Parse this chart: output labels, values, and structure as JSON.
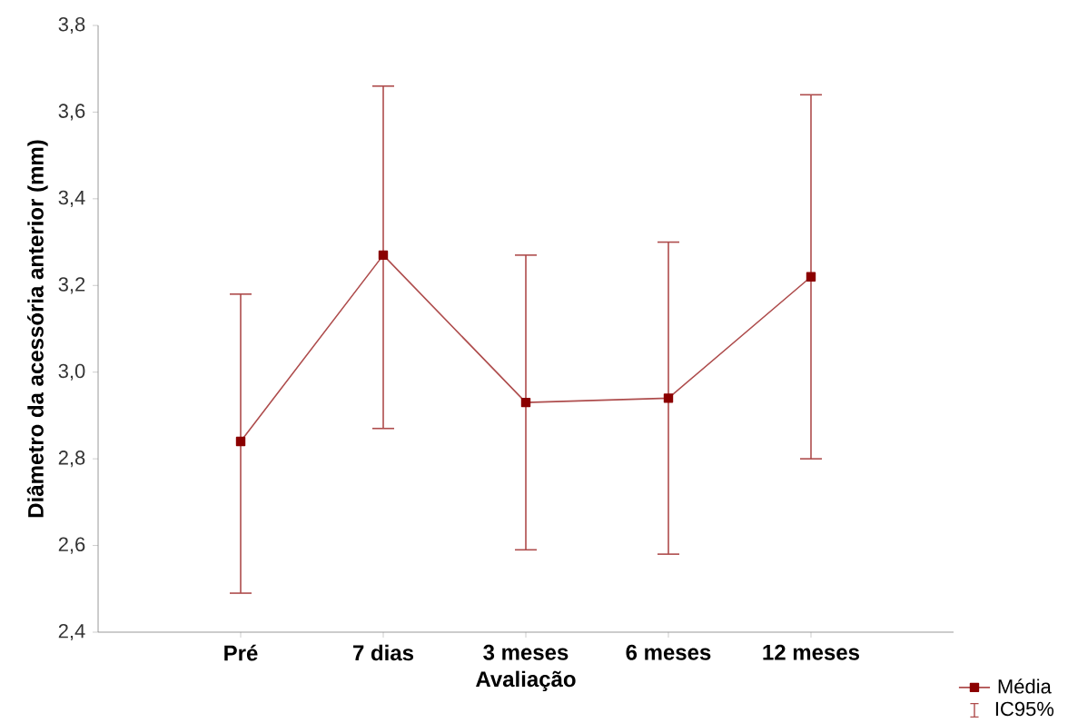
{
  "chart_data": {
    "type": "line",
    "xlabel": "Avaliação",
    "ylabel": "Diâmetro da acessória anterior (mm)",
    "categories": [
      "Pré",
      "7 dias",
      "3 meses",
      "6 meses",
      "12 meses"
    ],
    "series": [
      {
        "name": "Média",
        "color": "#8b0000",
        "values": [
          2.84,
          3.27,
          2.93,
          2.94,
          3.22
        ],
        "errors": [
          [
            2.49,
            3.18
          ],
          [
            2.87,
            3.66
          ],
          [
            2.59,
            3.27
          ],
          [
            2.58,
            3.3
          ],
          [
            2.8,
            3.64
          ]
        ]
      }
    ],
    "ylim": [
      2.4,
      3.8
    ],
    "yticks": [
      {
        "value": 2.4,
        "label": "2,4"
      },
      {
        "value": 2.6,
        "label": "2,6"
      },
      {
        "value": 2.8,
        "label": "2,8"
      },
      {
        "value": 3.0,
        "label": "3,0"
      },
      {
        "value": 3.2,
        "label": "3,2"
      },
      {
        "value": 3.4,
        "label": "3,4"
      },
      {
        "value": 3.6,
        "label": "3,6"
      },
      {
        "value": 3.8,
        "label": "3,8"
      }
    ],
    "marker": "square",
    "line_style": "solid",
    "grid": false,
    "legend": "bottom right",
    "annotations": [
      "IC95%"
    ]
  }
}
